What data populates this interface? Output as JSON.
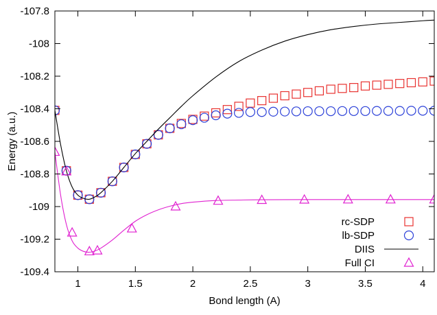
{
  "chart_data": {
    "type": "line",
    "xlabel": "Bond length (A)",
    "ylabel": "Energy (a.u.)",
    "xlim": [
      0.8,
      4.1
    ],
    "ylim": [
      -109.4,
      -107.8
    ],
    "x_ticks": [
      1,
      1.5,
      2,
      2.5,
      3,
      3.5,
      4
    ],
    "x_tick_labels": [
      "1",
      "1.5",
      "2",
      "2.5",
      "3",
      "3.5",
      "4"
    ],
    "y_ticks": [
      -109.4,
      -109.2,
      -109.0,
      -108.8,
      -108.6,
      -108.4,
      -108.2,
      -108.0,
      -107.8
    ],
    "y_tick_labels": [
      "-109.4",
      "-109.2",
      "-109",
      "-108.8",
      "-108.6",
      "-108.4",
      "-108.2",
      "-108",
      "-107.8"
    ],
    "grid": false,
    "legend_position": "bottom-right",
    "series": [
      {
        "name": "rc-SDP",
        "style": "square-markers",
        "color": "#e8312f",
        "x": [
          0.8,
          0.9,
          1.0,
          1.1,
          1.2,
          1.3,
          1.4,
          1.5,
          1.6,
          1.7,
          1.8,
          1.9,
          2.0,
          2.1,
          2.2,
          2.3,
          2.4,
          2.5,
          2.6,
          2.7,
          2.8,
          2.9,
          3.0,
          3.1,
          3.2,
          3.3,
          3.4,
          3.5,
          3.6,
          3.7,
          3.8,
          3.9,
          4.0,
          4.1
        ],
        "y": [
          -108.41,
          -108.78,
          -108.93,
          -108.955,
          -108.915,
          -108.845,
          -108.76,
          -108.68,
          -108.615,
          -108.56,
          -108.52,
          -108.49,
          -108.465,
          -108.445,
          -108.425,
          -108.405,
          -108.385,
          -108.365,
          -108.35,
          -108.335,
          -108.32,
          -108.31,
          -108.3,
          -108.29,
          -108.28,
          -108.275,
          -108.27,
          -108.26,
          -108.255,
          -108.25,
          -108.245,
          -108.24,
          -108.235,
          -108.23
        ]
      },
      {
        "name": "lb-SDP",
        "style": "circle-markers",
        "color": "#2a3fd8",
        "x": [
          0.8,
          0.9,
          1.0,
          1.1,
          1.2,
          1.3,
          1.4,
          1.5,
          1.6,
          1.7,
          1.8,
          1.9,
          2.0,
          2.1,
          2.2,
          2.3,
          2.4,
          2.5,
          2.6,
          2.7,
          2.8,
          2.9,
          3.0,
          3.1,
          3.2,
          3.3,
          3.4,
          3.5,
          3.6,
          3.7,
          3.8,
          3.9,
          4.0,
          4.1
        ],
        "y": [
          -108.41,
          -108.78,
          -108.93,
          -108.955,
          -108.915,
          -108.845,
          -108.76,
          -108.68,
          -108.615,
          -108.56,
          -108.52,
          -108.495,
          -108.47,
          -108.455,
          -108.44,
          -108.43,
          -108.425,
          -108.42,
          -108.42,
          -108.418,
          -108.417,
          -108.416,
          -108.415,
          -108.415,
          -108.415,
          -108.414,
          -108.414,
          -108.414,
          -108.413,
          -108.413,
          -108.413,
          -108.412,
          -108.412,
          -108.412
        ]
      },
      {
        "name": "DIIS",
        "style": "solid-line",
        "color": "#000000",
        "x": [
          0.8,
          0.85,
          0.9,
          0.95,
          1.0,
          1.05,
          1.1,
          1.15,
          1.2,
          1.3,
          1.4,
          1.5,
          1.6,
          1.7,
          1.8,
          1.9,
          2.0,
          2.2,
          2.4,
          2.6,
          2.8,
          3.0,
          3.2,
          3.4,
          3.6,
          3.8,
          4.0,
          4.1
        ],
        "y": [
          -108.41,
          -108.62,
          -108.78,
          -108.88,
          -108.93,
          -108.95,
          -108.955,
          -108.94,
          -108.915,
          -108.845,
          -108.76,
          -108.675,
          -108.6,
          -108.525,
          -108.455,
          -108.385,
          -108.32,
          -108.205,
          -108.11,
          -108.04,
          -107.985,
          -107.945,
          -107.915,
          -107.895,
          -107.88,
          -107.87,
          -107.86,
          -107.856
        ]
      },
      {
        "name": "Full CI",
        "style": "triangle-markers-with-line",
        "color": "#e020d0",
        "marker_x": [
          0.8,
          0.9,
          0.95,
          1.1,
          1.17,
          1.47,
          1.85,
          2.22,
          2.6,
          2.97,
          3.35,
          3.72,
          4.1
        ],
        "marker_y": [
          -108.665,
          -108.785,
          -109.16,
          -109.275,
          -109.27,
          -109.135,
          -109.0,
          -108.965,
          -108.96,
          -108.958,
          -108.957,
          -108.957,
          -108.957
        ],
        "x": [
          0.8,
          0.85,
          0.9,
          0.95,
          1.0,
          1.05,
          1.1,
          1.15,
          1.2,
          1.3,
          1.4,
          1.5,
          1.6,
          1.7,
          1.8,
          1.9,
          2.0,
          2.2,
          2.4,
          2.6,
          3.0,
          3.5,
          4.1
        ],
        "y": [
          -108.665,
          -108.93,
          -109.11,
          -109.21,
          -109.255,
          -109.275,
          -109.28,
          -109.272,
          -109.255,
          -109.205,
          -109.145,
          -109.09,
          -109.05,
          -109.02,
          -108.998,
          -108.982,
          -108.973,
          -108.963,
          -108.96,
          -108.958,
          -108.957,
          -108.957,
          -108.957
        ]
      }
    ]
  }
}
